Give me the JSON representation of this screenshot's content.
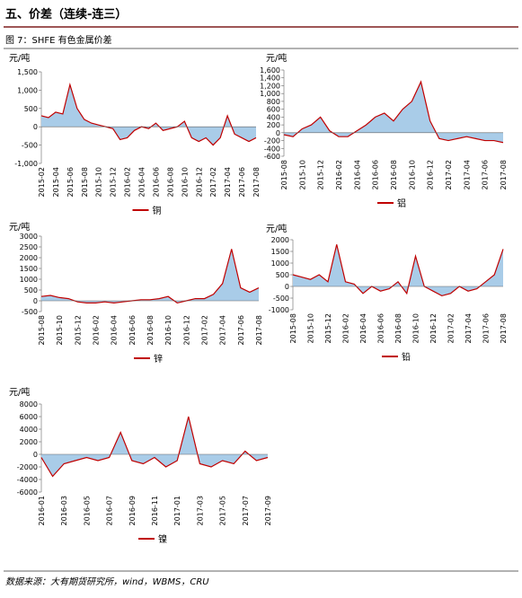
{
  "header": {
    "title": "五、价差（连续-连三）"
  },
  "figure_caption": "图 7：SHFE 有色金属价差",
  "source": "数据来源：大有期货研究所，wind，WBMS，CRU",
  "chart_data": [
    {
      "type": "area",
      "ylabel": "元/吨",
      "fill_color": "#a9cce8",
      "categories": [
        "2015-02",
        null,
        "2015-04",
        null,
        "2015-06",
        null,
        "2015-08",
        null,
        "2015-10",
        null,
        "2015-12",
        null,
        "2016-02",
        null,
        "2016-04",
        null,
        "2016-06",
        null,
        "2016-08",
        null,
        "2016-10",
        null,
        "2016-12",
        null,
        "2017-02",
        null,
        "2017-04",
        null,
        "2017-06",
        null,
        "2017-08"
      ],
      "series": [
        {
          "name": "铜",
          "color": "#c00000",
          "values": [
            300,
            250,
            400,
            350,
            1150,
            500,
            200,
            100,
            50,
            0,
            -50,
            -350,
            -300,
            -100,
            0,
            -50,
            100,
            -100,
            -50,
            0,
            150,
            -300,
            -400,
            -300,
            -500,
            -300,
            300,
            -200,
            -300,
            -400,
            -300
          ]
        }
      ],
      "ylim": [
        -1000,
        1500
      ],
      "yticks": [
        {
          "value": -1000,
          "label": "-1,000"
        },
        -500,
        0,
        500,
        {
          "value": 1000,
          "label": "1,000"
        },
        {
          "value": 1500,
          "label": "1,500"
        }
      ]
    },
    {
      "type": "area",
      "ylabel": "元/吨",
      "fill_color": "#a9cce8",
      "categories": [
        "2015-08",
        null,
        "2015-10",
        null,
        "2015-12",
        null,
        "2016-02",
        null,
        "2016-04",
        null,
        "2016-06",
        null,
        "2016-08",
        null,
        "2016-10",
        null,
        "2016-12",
        null,
        "2017-02",
        null,
        "2017-04",
        null,
        "2017-06",
        null,
        "2017-08"
      ],
      "series": [
        {
          "name": "铝",
          "color": "#c00000",
          "values": [
            -50,
            -100,
            100,
            200,
            400,
            50,
            -100,
            -100,
            50,
            200,
            400,
            500,
            300,
            600,
            800,
            1300,
            300,
            -150,
            -200,
            -150,
            -100,
            -150,
            -200,
            -200,
            -250
          ]
        }
      ],
      "ylim": [
        -600,
        1600
      ],
      "yticks": [
        -600,
        -400,
        -200,
        0,
        200,
        400,
        600,
        800,
        {
          "value": 1000,
          "label": "1,000"
        },
        {
          "value": 1200,
          "label": "1,200"
        },
        {
          "value": 1400,
          "label": "1,400"
        },
        {
          "value": 1600,
          "label": "1,600"
        }
      ]
    },
    {
      "type": "area",
      "ylabel": "元/吨",
      "fill_color": "#a9cce8",
      "categories": [
        "2015-08",
        null,
        "2015-10",
        null,
        "2015-12",
        null,
        "2016-02",
        null,
        "2016-04",
        null,
        "2016-06",
        null,
        "2016-08",
        null,
        "2016-10",
        null,
        "2016-12",
        null,
        "2017-02",
        null,
        "2017-04",
        null,
        "2017-06",
        null,
        "2017-08"
      ],
      "series": [
        {
          "name": "锌",
          "color": "#c00000",
          "values": [
            200,
            250,
            150,
            100,
            -50,
            -100,
            -100,
            -50,
            -100,
            -50,
            0,
            50,
            50,
            100,
            200,
            -100,
            0,
            100,
            100,
            300,
            800,
            2400,
            600,
            400,
            600
          ]
        }
      ],
      "ylim": [
        -500,
        3000
      ],
      "yticks": [
        -500,
        0,
        500,
        1000,
        1500,
        2000,
        2500,
        3000
      ]
    },
    {
      "type": "area",
      "ylabel": "元/吨",
      "fill_color": "#a9cce8",
      "categories": [
        "2015-08",
        null,
        "2015-10",
        null,
        "2015-12",
        null,
        "2016-02",
        null,
        "2016-04",
        null,
        "2016-06",
        null,
        "2016-08",
        null,
        "2016-10",
        null,
        "2016-12",
        null,
        "2017-02",
        null,
        "2017-04",
        null,
        "2017-06",
        null,
        "2017-08"
      ],
      "series": [
        {
          "name": "铅",
          "color": "#c00000",
          "values": [
            500,
            400,
            300,
            500,
            200,
            1800,
            200,
            100,
            -300,
            0,
            -200,
            -100,
            200,
            -300,
            1300,
            0,
            -200,
            -400,
            -300,
            0,
            -200,
            -100,
            200,
            500,
            1600
          ]
        }
      ],
      "ylim": [
        -1000,
        2000
      ],
      "yticks": [
        -1000,
        -500,
        0,
        500,
        1000,
        1500,
        2000
      ]
    },
    {
      "type": "area",
      "ylabel": "元/吨",
      "fill_color": "#a9cce8",
      "categories": [
        "2016-01",
        null,
        "2016-03",
        null,
        "2016-05",
        null,
        "2016-07",
        null,
        "2016-09",
        null,
        "2016-11",
        null,
        "2017-01",
        null,
        "2017-03",
        null,
        "2017-05",
        null,
        "2017-07",
        null,
        "2017-09"
      ],
      "series": [
        {
          "name": "镍",
          "color": "#c00000",
          "values": [
            -500,
            -3500,
            -1500,
            -1000,
            -500,
            -1000,
            -500,
            3500,
            -1000,
            -1500,
            -500,
            -2000,
            -1000,
            6000,
            -1500,
            -2000,
            -1000,
            -1500,
            500,
            -1000,
            -500
          ]
        }
      ],
      "ylim": [
        -6000,
        8000
      ],
      "yticks": [
        -6000,
        -4000,
        -2000,
        0,
        2000,
        4000,
        6000,
        8000
      ]
    }
  ]
}
